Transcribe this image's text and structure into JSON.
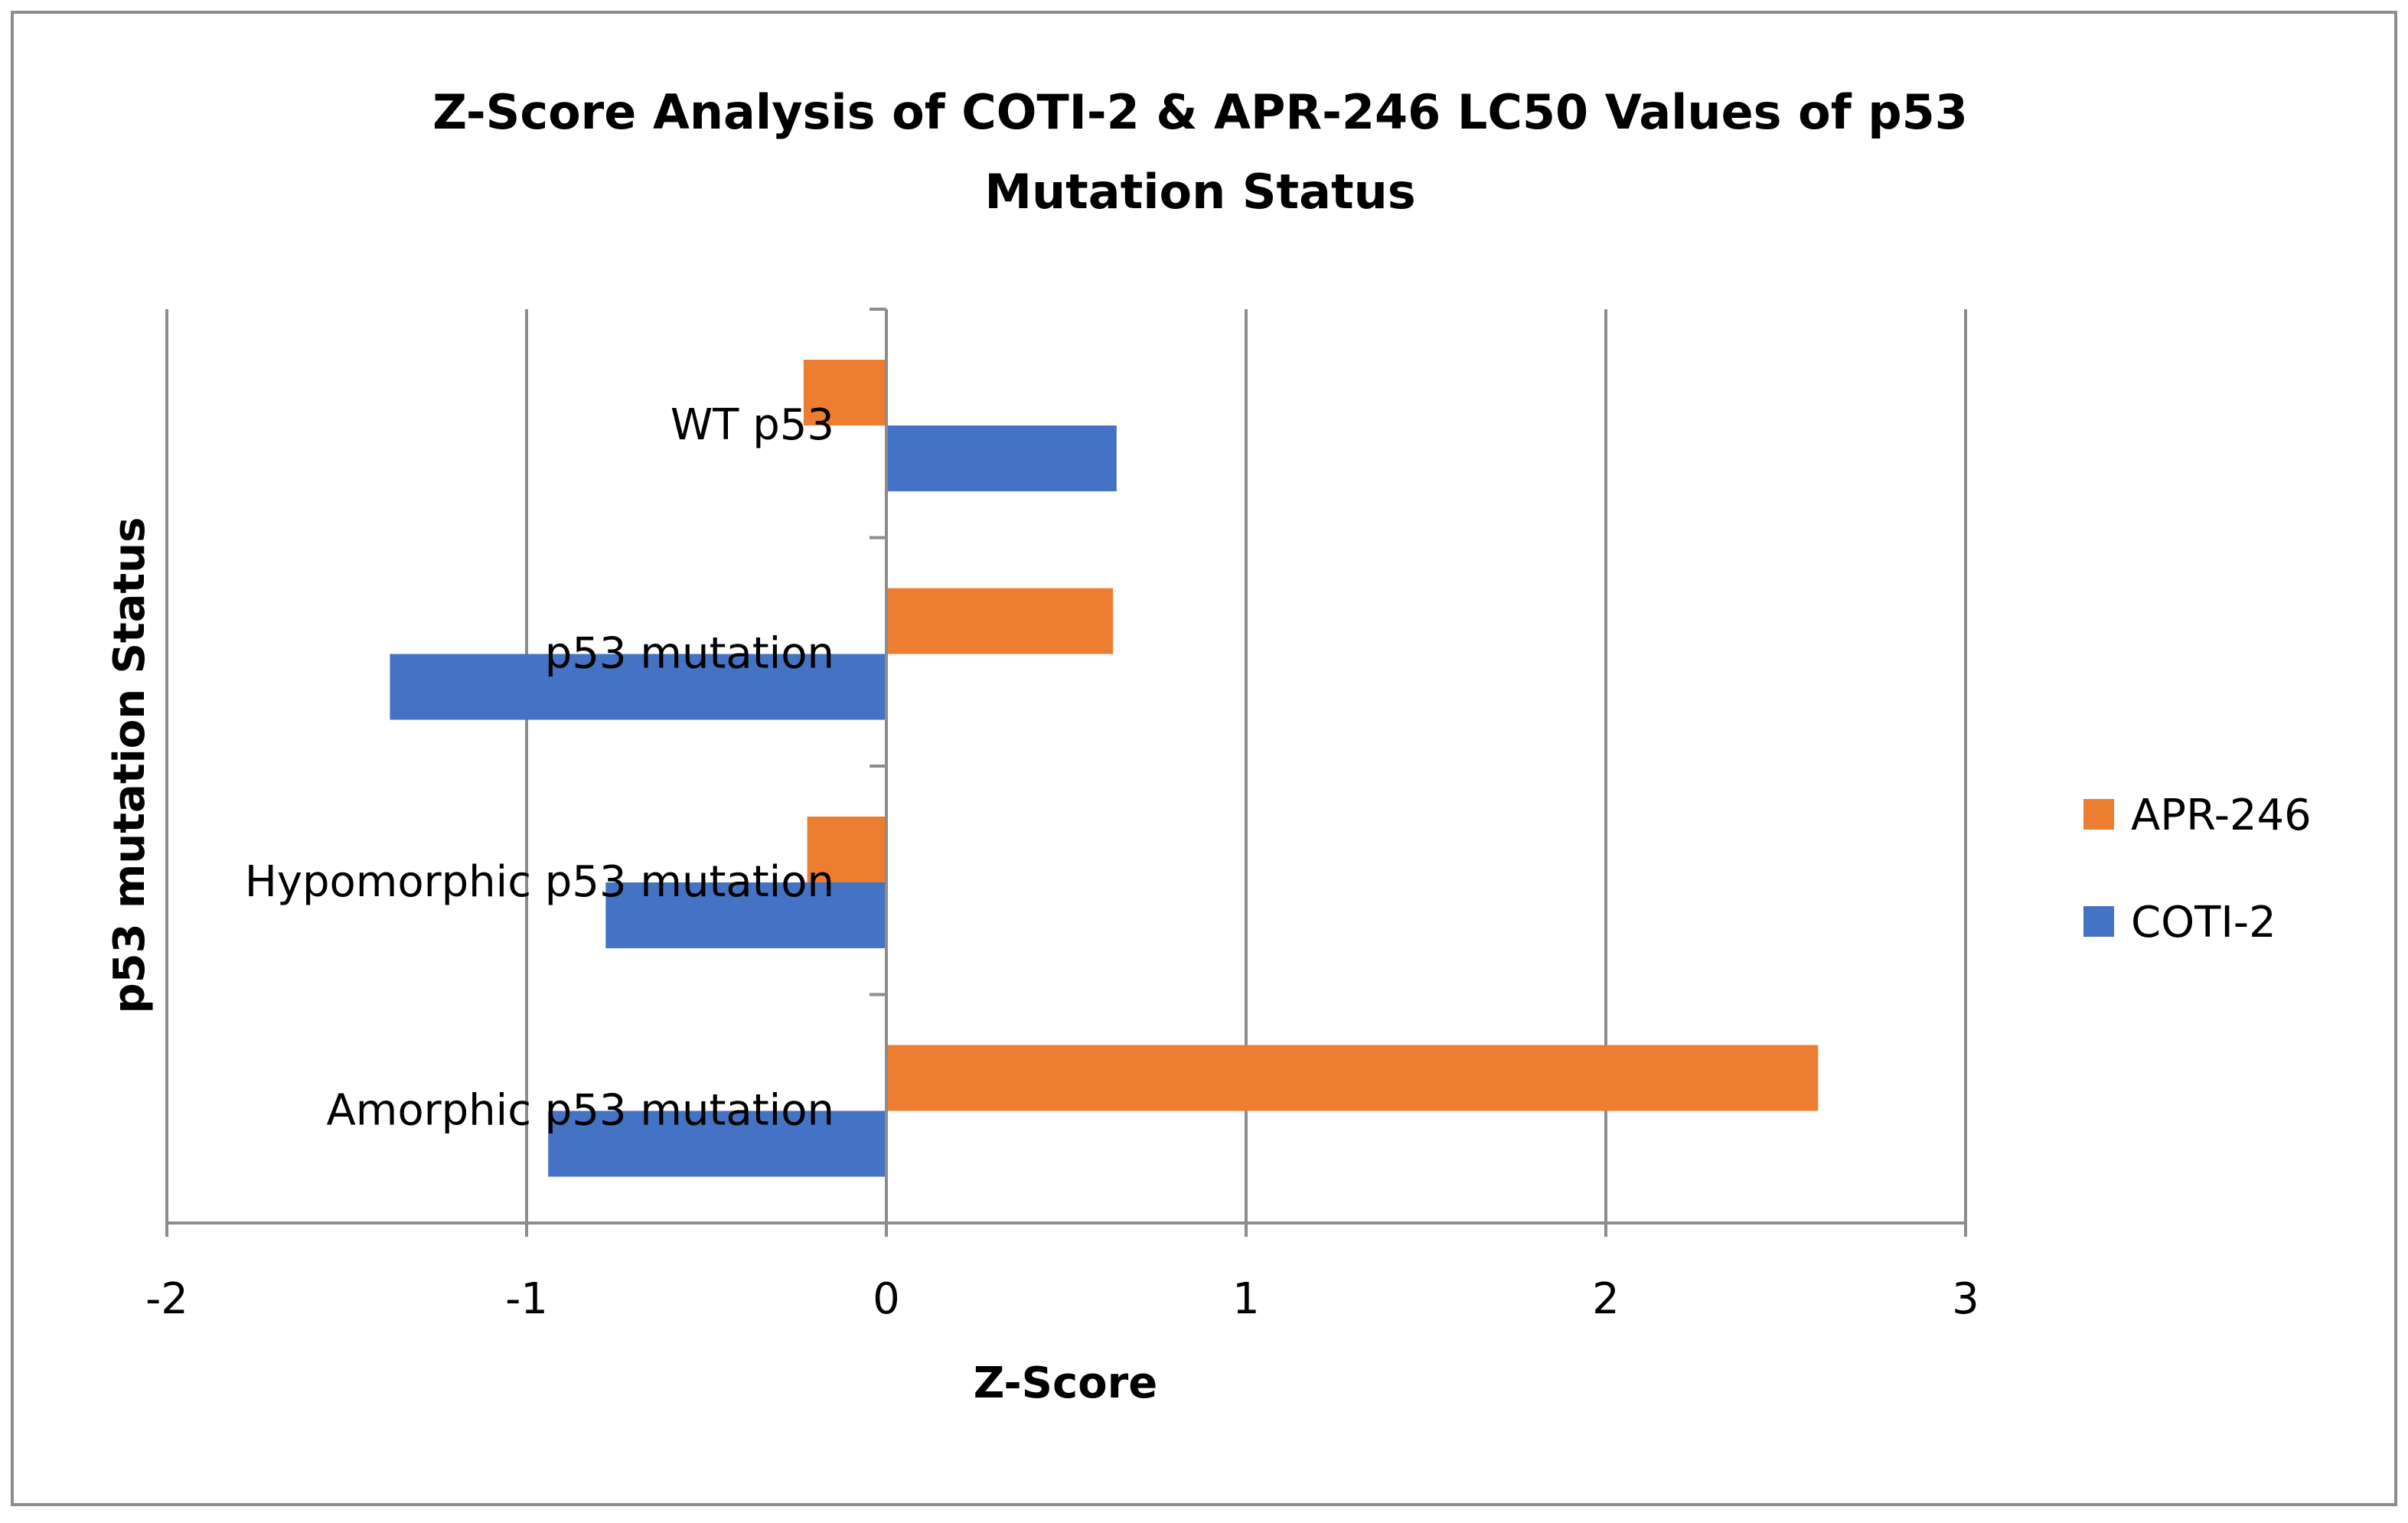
{
  "chart_data": {
    "type": "bar",
    "orientation": "horizontal",
    "title_lines": [
      "Z-Score Analysis of COTI-2 & APR-246 LC50 Values of p53",
      "Mutation Status"
    ],
    "xlabel": "Z-Score",
    "ylabel": "p53 mutation Status",
    "xlim": [
      -2,
      3
    ],
    "xticks": [
      -2,
      -1,
      0,
      1,
      2,
      3
    ],
    "xtick_labels": [
      "-2",
      "-1",
      "0",
      "1",
      "2",
      "3"
    ],
    "grid": "vertical",
    "categories": [
      "WT p53",
      "p53 mutation",
      "Hypomorphic p53 mutation",
      "Amorphic p53 mutation"
    ],
    "series": [
      {
        "name": "APR-246",
        "color": "#ED7D31",
        "values": [
          -0.23,
          0.63,
          -0.22,
          2.59
        ]
      },
      {
        "name": "COTI-2",
        "color": "#4472C4",
        "values": [
          0.64,
          -1.38,
          -0.78,
          -0.94
        ]
      }
    ],
    "legend": {
      "position": "right",
      "order": [
        "APR-246",
        "COTI-2"
      ]
    }
  }
}
